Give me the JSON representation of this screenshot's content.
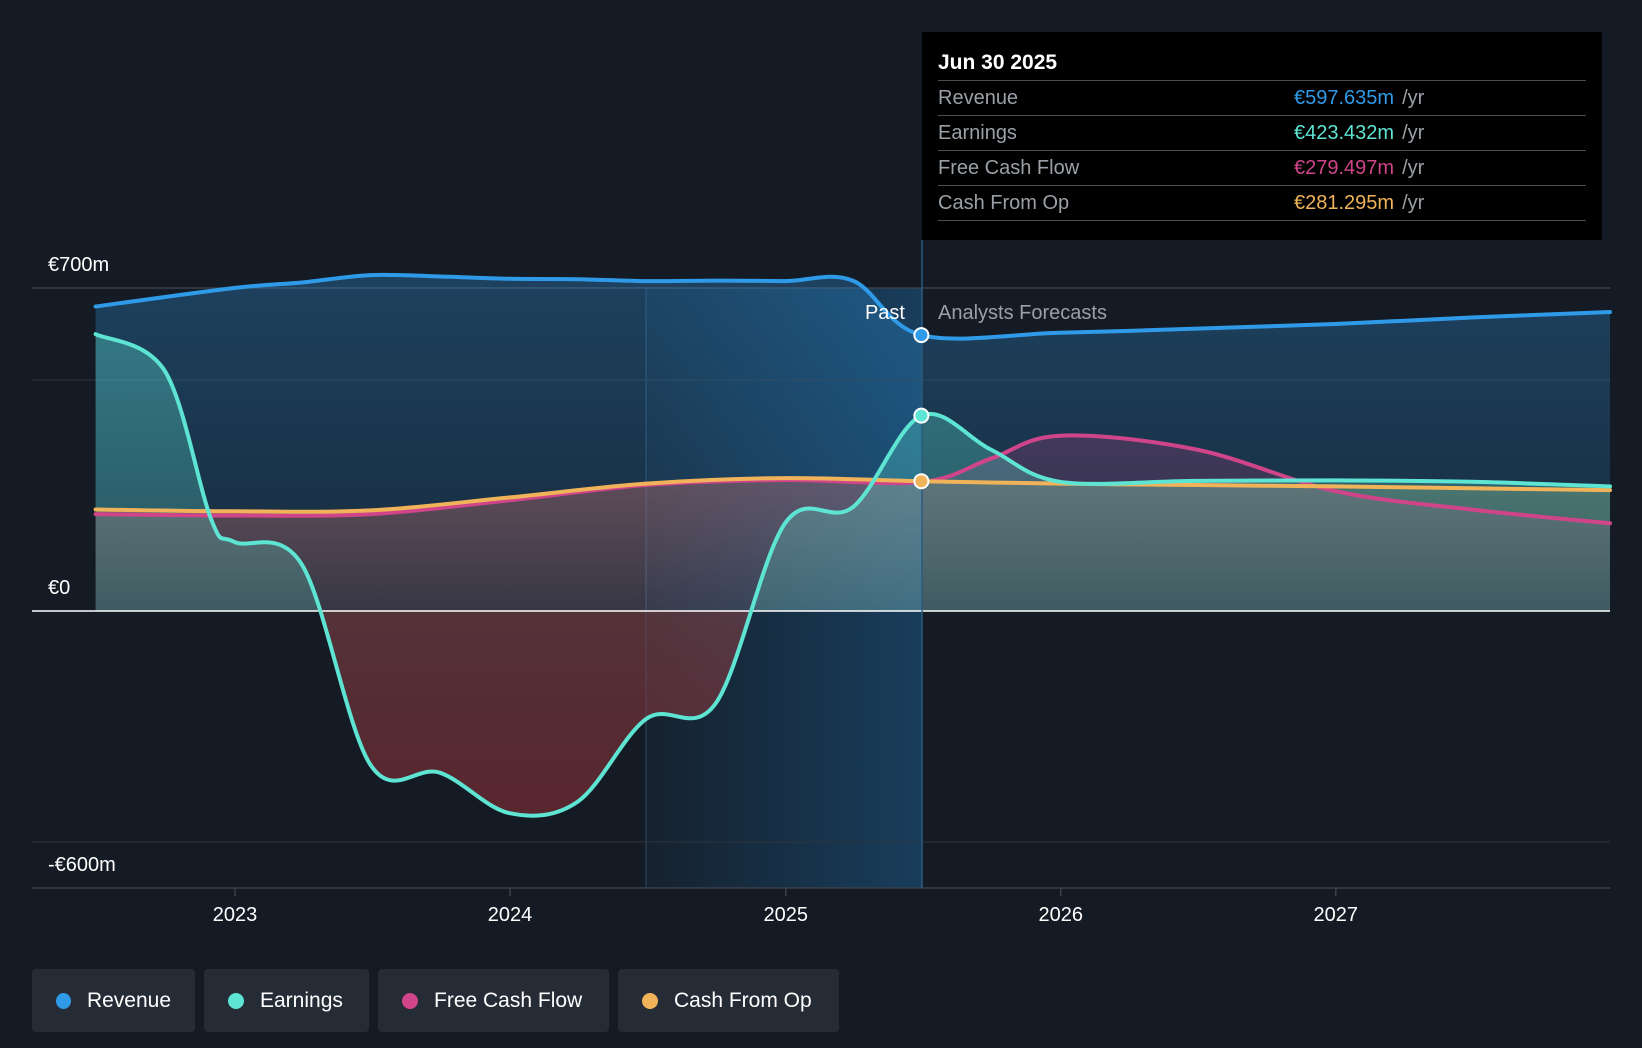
{
  "chart_data": {
    "type": "line",
    "x_tick_labels": [
      "2023",
      "2024",
      "2025",
      "2026",
      "2027"
    ],
    "y_tick_labels": [
      "€700m",
      "€0",
      "-€600m"
    ],
    "ylim": [
      -600,
      700
    ],
    "past_label": "Past",
    "forecast_label": "Analysts Forecasts",
    "divider_date": "2025-06-30",
    "grid": true,
    "legend_position": "bottom-left",
    "series": [
      {
        "name": "Revenue",
        "color": "#2f9be8",
        "points": [
          [
            "2022-06-30",
            660
          ],
          [
            "2022-12-31",
            700
          ],
          [
            "2023-03-31",
            712
          ],
          [
            "2023-06-30",
            728
          ],
          [
            "2023-09-30",
            725
          ],
          [
            "2023-12-31",
            720
          ],
          [
            "2024-03-31",
            719
          ],
          [
            "2024-06-30",
            715
          ],
          [
            "2024-09-30",
            716
          ],
          [
            "2024-12-31",
            715
          ],
          [
            "2025-03-31",
            716
          ],
          [
            "2025-06-30",
            598
          ],
          [
            "2025-12-31",
            603
          ],
          [
            "2026-06-30",
            612
          ],
          [
            "2026-12-31",
            622
          ],
          [
            "2027-06-30",
            636
          ],
          [
            "2027-12-31",
            648
          ]
        ]
      },
      {
        "name": "Earnings",
        "color": "#5ee4d3",
        "points": [
          [
            "2022-06-30",
            600
          ],
          [
            "2022-09-30",
            520
          ],
          [
            "2022-11-30",
            200
          ],
          [
            "2022-12-31",
            150
          ],
          [
            "2023-03-31",
            100
          ],
          [
            "2023-06-30",
            -400
          ],
          [
            "2023-09-30",
            -420
          ],
          [
            "2023-12-31",
            -525
          ],
          [
            "2024-03-31",
            -495
          ],
          [
            "2024-06-30",
            -280
          ],
          [
            "2024-09-30",
            -240
          ],
          [
            "2024-12-31",
            190
          ],
          [
            "2025-03-31",
            225
          ],
          [
            "2025-06-30",
            423.432
          ],
          [
            "2025-09-30",
            350
          ],
          [
            "2025-12-31",
            280
          ],
          [
            "2026-06-30",
            282
          ],
          [
            "2026-12-31",
            283
          ],
          [
            "2027-06-30",
            280
          ],
          [
            "2027-12-31",
            270
          ]
        ]
      },
      {
        "name": "Free Cash Flow",
        "color": "#d0458a",
        "points": [
          [
            "2022-06-30",
            210
          ],
          [
            "2022-12-31",
            207
          ],
          [
            "2023-06-30",
            210
          ],
          [
            "2023-12-31",
            240
          ],
          [
            "2024-06-30",
            273
          ],
          [
            "2024-12-31",
            284
          ],
          [
            "2025-06-30",
            279.497
          ],
          [
            "2025-09-30",
            330
          ],
          [
            "2025-12-31",
            380
          ],
          [
            "2026-06-30",
            350
          ],
          [
            "2026-12-31",
            260
          ],
          [
            "2027-06-30",
            220
          ],
          [
            "2027-12-31",
            190
          ]
        ]
      },
      {
        "name": "Cash From Op",
        "color": "#f0b35a",
        "points": [
          [
            "2022-06-30",
            220
          ],
          [
            "2022-12-31",
            216
          ],
          [
            "2023-06-30",
            218
          ],
          [
            "2023-12-31",
            246
          ],
          [
            "2024-06-30",
            276
          ],
          [
            "2024-12-31",
            288
          ],
          [
            "2025-06-30",
            281.295
          ],
          [
            "2025-12-31",
            276
          ],
          [
            "2026-06-30",
            273
          ],
          [
            "2026-12-31",
            270
          ],
          [
            "2027-06-30",
            266
          ],
          [
            "2027-12-31",
            262
          ]
        ]
      }
    ]
  },
  "tooltip": {
    "date": "Jun 30 2025",
    "rows": [
      {
        "name": "Revenue",
        "value": "€597.635m",
        "unit": "/yr",
        "color": "#2f9be8"
      },
      {
        "name": "Earnings",
        "value": "€423.432m",
        "unit": "/yr",
        "color": "#5ee4d3"
      },
      {
        "name": "Free Cash Flow",
        "value": "€279.497m",
        "unit": "/yr",
        "color": "#d0458a"
      },
      {
        "name": "Cash From Op",
        "value": "€281.295m",
        "unit": "/yr",
        "color": "#f0b35a"
      }
    ]
  },
  "legend": [
    {
      "label": "Revenue",
      "color": "#2f9be8"
    },
    {
      "label": "Earnings",
      "color": "#5ee4d3"
    },
    {
      "label": "Free Cash Flow",
      "color": "#d0458a"
    },
    {
      "label": "Cash From Op",
      "color": "#f0b35a"
    }
  ]
}
